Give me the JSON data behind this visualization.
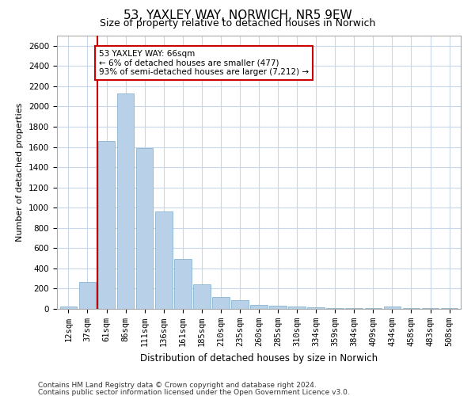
{
  "title1": "53, YAXLEY WAY, NORWICH, NR5 9EW",
  "title2": "Size of property relative to detached houses in Norwich",
  "xlabel": "Distribution of detached houses by size in Norwich",
  "ylabel": "Number of detached properties",
  "categories": [
    "12sqm",
    "37sqm",
    "61sqm",
    "86sqm",
    "111sqm",
    "136sqm",
    "161sqm",
    "185sqm",
    "210sqm",
    "235sqm",
    "260sqm",
    "285sqm",
    "310sqm",
    "334sqm",
    "359sqm",
    "384sqm",
    "409sqm",
    "434sqm",
    "458sqm",
    "483sqm",
    "508sqm"
  ],
  "values": [
    20,
    270,
    1660,
    2130,
    1590,
    960,
    490,
    245,
    120,
    90,
    40,
    35,
    22,
    18,
    10,
    7,
    5,
    20,
    5,
    10,
    5
  ],
  "bar_color": "#b8d0e8",
  "bar_edge_color": "#7aaac8",
  "property_line_x": 1.5,
  "annotation_text": "53 YAXLEY WAY: 66sqm\n← 6% of detached houses are smaller (477)\n93% of semi-detached houses are larger (7,212) →",
  "annotation_box_color": "#ffffff",
  "annotation_box_edge": "#cc0000",
  "vline_color": "#cc0000",
  "ylim": [
    0,
    2700
  ],
  "yticks": [
    0,
    200,
    400,
    600,
    800,
    1000,
    1200,
    1400,
    1600,
    1800,
    2000,
    2200,
    2400,
    2600
  ],
  "footer1": "Contains HM Land Registry data © Crown copyright and database right 2024.",
  "footer2": "Contains public sector information licensed under the Open Government Licence v3.0.",
  "bg_color": "#ffffff",
  "grid_color": "#c8d8ea",
  "title1_fontsize": 11,
  "title2_fontsize": 9,
  "xlabel_fontsize": 8.5,
  "ylabel_fontsize": 8,
  "tick_fontsize": 7.5,
  "annotation_fontsize": 7.5,
  "footer_fontsize": 6.5
}
